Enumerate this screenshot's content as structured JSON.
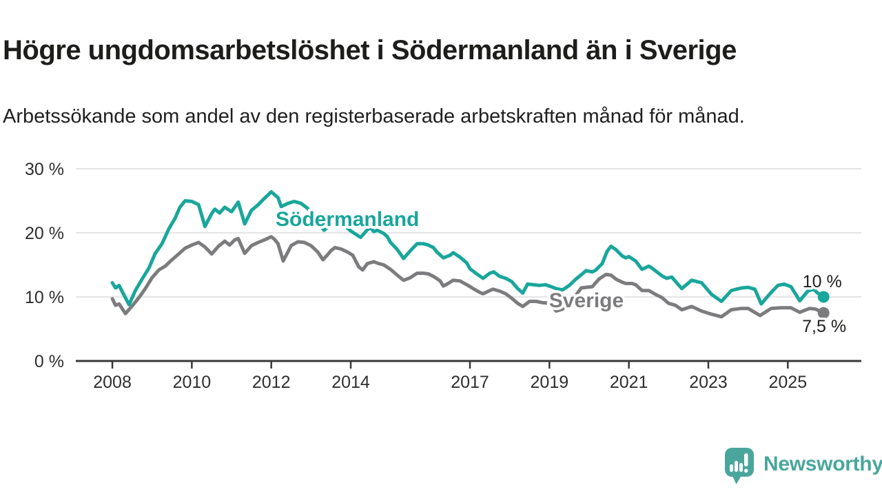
{
  "header": {
    "title": "Högre ungdomsarbetslöshet i Södermanland än i Sverige",
    "subtitle": "Arbetssökande som andel av den registerbaserade arbetskraften månad för månad."
  },
  "branding": {
    "logo_text": "Newsworthy",
    "logo_color": "#4aa69d",
    "logo_icon": "bar-chart-speech-bubble-icon"
  },
  "chart_data": {
    "type": "line",
    "title": "Högre ungdomsarbetslöshet i Södermanland än i Sverige",
    "subtitle": "Arbetssökande som andel av den registerbaserade arbetskraften månad för månad.",
    "x_unit": "year (monthly observations)",
    "y_unit": "percent",
    "grid": "horizontal-only",
    "grid_color": "#dcdcdc",
    "axis_color": "#383838",
    "xlim": [
      2007.08,
      2026.85
    ],
    "ylim": [
      0,
      30
    ],
    "y_ticks": [
      {
        "value": 0,
        "label": "0 %"
      },
      {
        "value": 10,
        "label": "10 %"
      },
      {
        "value": 20,
        "label": "20 %"
      },
      {
        "value": 30,
        "label": "30 %"
      }
    ],
    "x_ticks": [
      {
        "value": 2008,
        "label": "2008"
      },
      {
        "value": 2010,
        "label": "2010"
      },
      {
        "value": 2012,
        "label": "2012"
      },
      {
        "value": 2014,
        "label": "2014"
      },
      {
        "value": 2017,
        "label": "2017"
      },
      {
        "value": 2019,
        "label": "2019"
      },
      {
        "value": 2021,
        "label": "2021"
      },
      {
        "value": 2023,
        "label": "2023"
      },
      {
        "value": 2025,
        "label": "2025"
      }
    ],
    "annotations": [
      {
        "text": "10 %",
        "x": 2026.36,
        "y": 11.5,
        "anchor": "end"
      },
      {
        "text": "7,5 %",
        "x": 2026.47,
        "y": 4.5,
        "anchor": "end"
      }
    ],
    "series": [
      {
        "name": "Sverige",
        "color": "#7c7c7f",
        "end_value_label": "7,5 %",
        "label": {
          "text": "Sverige",
          "x": 2018.99,
          "y": 8.4,
          "anchor": "start"
        },
        "points": [
          [
            2008.0,
            9.7
          ],
          [
            2008.08,
            8.7
          ],
          [
            2008.17,
            8.9
          ],
          [
            2008.33,
            7.4
          ],
          [
            2008.5,
            8.6
          ],
          [
            2008.67,
            9.9
          ],
          [
            2008.83,
            11.3
          ],
          [
            2009.0,
            13.0
          ],
          [
            2009.17,
            14.2
          ],
          [
            2009.33,
            14.8
          ],
          [
            2009.5,
            15.8
          ],
          [
            2009.67,
            16.7
          ],
          [
            2009.83,
            17.6
          ],
          [
            2010.0,
            18.1
          ],
          [
            2010.17,
            18.5
          ],
          [
            2010.33,
            17.8
          ],
          [
            2010.5,
            16.7
          ],
          [
            2010.67,
            17.9
          ],
          [
            2010.83,
            18.7
          ],
          [
            2010.95,
            18.1
          ],
          [
            2011.08,
            18.9
          ],
          [
            2011.17,
            19.1
          ],
          [
            2011.33,
            16.8
          ],
          [
            2011.5,
            18.0
          ],
          [
            2011.67,
            18.5
          ],
          [
            2011.83,
            18.9
          ],
          [
            2012.0,
            19.4
          ],
          [
            2012.08,
            19.0
          ],
          [
            2012.17,
            18.3
          ],
          [
            2012.3,
            15.6
          ],
          [
            2012.5,
            18.0
          ],
          [
            2012.67,
            18.6
          ],
          [
            2012.83,
            18.5
          ],
          [
            2013.0,
            18.0
          ],
          [
            2013.17,
            17.0
          ],
          [
            2013.3,
            15.8
          ],
          [
            2013.42,
            16.6
          ],
          [
            2013.5,
            17.2
          ],
          [
            2013.6,
            17.7
          ],
          [
            2013.75,
            17.5
          ],
          [
            2013.92,
            17.0
          ],
          [
            2014.05,
            16.5
          ],
          [
            2014.2,
            14.7
          ],
          [
            2014.3,
            14.2
          ],
          [
            2014.42,
            15.2
          ],
          [
            2014.58,
            15.5
          ],
          [
            2014.7,
            15.2
          ],
          [
            2014.83,
            15.0
          ],
          [
            2015.0,
            14.3
          ],
          [
            2015.17,
            13.4
          ],
          [
            2015.33,
            12.6
          ],
          [
            2015.5,
            13.0
          ],
          [
            2015.67,
            13.7
          ],
          [
            2015.83,
            13.7
          ],
          [
            2015.95,
            13.6
          ],
          [
            2016.08,
            13.2
          ],
          [
            2016.25,
            12.5
          ],
          [
            2016.33,
            11.7
          ],
          [
            2016.45,
            12.1
          ],
          [
            2016.58,
            12.6
          ],
          [
            2016.75,
            12.5
          ],
          [
            2016.92,
            11.9
          ],
          [
            2017.08,
            11.3
          ],
          [
            2017.25,
            10.7
          ],
          [
            2017.33,
            10.5
          ],
          [
            2017.5,
            11.0
          ],
          [
            2017.58,
            11.2
          ],
          [
            2017.75,
            10.9
          ],
          [
            2017.9,
            10.5
          ],
          [
            2018.05,
            9.8
          ],
          [
            2018.2,
            9.0
          ],
          [
            2018.33,
            8.5
          ],
          [
            2018.5,
            9.3
          ],
          [
            2018.67,
            9.3
          ],
          [
            2018.83,
            9.1
          ],
          [
            2019.0,
            9.0
          ],
          [
            2019.17,
            7.8
          ],
          [
            2019.33,
            8.1
          ],
          [
            2019.5,
            9.2
          ],
          [
            2019.67,
            10.3
          ],
          [
            2019.8,
            11.4
          ],
          [
            2019.92,
            11.5
          ],
          [
            2020.08,
            11.6
          ],
          [
            2020.25,
            12.8
          ],
          [
            2020.42,
            13.5
          ],
          [
            2020.55,
            13.4
          ],
          [
            2020.67,
            12.8
          ],
          [
            2020.83,
            12.3
          ],
          [
            2020.92,
            12.1
          ],
          [
            2021.08,
            12.1
          ],
          [
            2021.17,
            11.9
          ],
          [
            2021.33,
            11.0
          ],
          [
            2021.5,
            11.0
          ],
          [
            2021.67,
            10.4
          ],
          [
            2021.83,
            9.9
          ],
          [
            2022.0,
            9.0
          ],
          [
            2022.17,
            8.7
          ],
          [
            2022.33,
            8.0
          ],
          [
            2022.58,
            8.5
          ],
          [
            2022.83,
            7.8
          ],
          [
            2023.08,
            7.3
          ],
          [
            2023.33,
            6.9
          ],
          [
            2023.58,
            8.0
          ],
          [
            2023.83,
            8.2
          ],
          [
            2024.0,
            8.2
          ],
          [
            2024.3,
            7.1
          ],
          [
            2024.58,
            8.2
          ],
          [
            2024.83,
            8.3
          ],
          [
            2025.08,
            8.3
          ],
          [
            2025.3,
            7.6
          ],
          [
            2025.55,
            8.2
          ],
          [
            2025.7,
            8.1
          ],
          [
            2025.9,
            7.5
          ]
        ]
      },
      {
        "name": "Södermanland",
        "color": "#19a69b",
        "end_value_label": "10 %",
        "label": {
          "text": "Södermanland",
          "x": 2012.11,
          "y": 21.1,
          "anchor": "start"
        },
        "points": [
          [
            2008.0,
            12.2
          ],
          [
            2008.08,
            11.4
          ],
          [
            2008.17,
            11.8
          ],
          [
            2008.25,
            10.8
          ],
          [
            2008.42,
            8.8
          ],
          [
            2008.58,
            11.0
          ],
          [
            2008.75,
            12.8
          ],
          [
            2008.92,
            14.5
          ],
          [
            2009.08,
            16.8
          ],
          [
            2009.25,
            18.3
          ],
          [
            2009.42,
            20.6
          ],
          [
            2009.58,
            22.3
          ],
          [
            2009.7,
            24.0
          ],
          [
            2009.83,
            25.0
          ],
          [
            2010.0,
            24.9
          ],
          [
            2010.17,
            24.4
          ],
          [
            2010.33,
            21.0
          ],
          [
            2010.5,
            23.0
          ],
          [
            2010.58,
            23.7
          ],
          [
            2010.7,
            23.1
          ],
          [
            2010.83,
            24.0
          ],
          [
            2011.0,
            23.3
          ],
          [
            2011.17,
            24.8
          ],
          [
            2011.33,
            21.4
          ],
          [
            2011.5,
            23.5
          ],
          [
            2011.67,
            24.4
          ],
          [
            2011.83,
            25.4
          ],
          [
            2012.0,
            26.4
          ],
          [
            2012.17,
            25.5
          ],
          [
            2012.25,
            24.1
          ],
          [
            2012.42,
            24.6
          ],
          [
            2012.58,
            24.9
          ],
          [
            2012.75,
            24.6
          ],
          [
            2012.92,
            23.8
          ],
          [
            2013.08,
            22.3
          ],
          [
            2013.33,
            20.4
          ],
          [
            2013.5,
            21.4
          ],
          [
            2013.67,
            21.8
          ],
          [
            2013.83,
            21.2
          ],
          [
            2014.0,
            20.3
          ],
          [
            2014.17,
            19.6
          ],
          [
            2014.25,
            19.3
          ],
          [
            2014.42,
            20.5
          ],
          [
            2014.5,
            20.8
          ],
          [
            2014.58,
            20.2
          ],
          [
            2014.67,
            20.4
          ],
          [
            2014.83,
            19.9
          ],
          [
            2014.92,
            19.4
          ],
          [
            2015.0,
            18.5
          ],
          [
            2015.17,
            17.4
          ],
          [
            2015.33,
            16.0
          ],
          [
            2015.5,
            17.2
          ],
          [
            2015.67,
            18.3
          ],
          [
            2015.83,
            18.3
          ],
          [
            2015.95,
            18.1
          ],
          [
            2016.08,
            17.7
          ],
          [
            2016.17,
            17.0
          ],
          [
            2016.33,
            16.1
          ],
          [
            2016.5,
            16.5
          ],
          [
            2016.58,
            16.9
          ],
          [
            2016.75,
            16.2
          ],
          [
            2016.92,
            15.3
          ],
          [
            2017.0,
            14.4
          ],
          [
            2017.17,
            13.6
          ],
          [
            2017.33,
            12.9
          ],
          [
            2017.5,
            13.7
          ],
          [
            2017.6,
            13.9
          ],
          [
            2017.75,
            13.2
          ],
          [
            2017.9,
            12.9
          ],
          [
            2018.05,
            12.4
          ],
          [
            2018.2,
            11.3
          ],
          [
            2018.33,
            10.6
          ],
          [
            2018.45,
            12.0
          ],
          [
            2018.6,
            11.9
          ],
          [
            2018.75,
            11.8
          ],
          [
            2018.9,
            11.9
          ],
          [
            2019.0,
            11.7
          ],
          [
            2019.17,
            11.3
          ],
          [
            2019.33,
            11.1
          ],
          [
            2019.5,
            11.8
          ],
          [
            2019.67,
            12.8
          ],
          [
            2019.83,
            13.6
          ],
          [
            2019.92,
            14.1
          ],
          [
            2020.08,
            13.9
          ],
          [
            2020.17,
            14.2
          ],
          [
            2020.33,
            15.2
          ],
          [
            2020.45,
            17.1
          ],
          [
            2020.55,
            17.9
          ],
          [
            2020.67,
            17.4
          ],
          [
            2020.83,
            16.4
          ],
          [
            2020.92,
            16.1
          ],
          [
            2021.0,
            16.3
          ],
          [
            2021.17,
            15.6
          ],
          [
            2021.33,
            14.3
          ],
          [
            2021.5,
            14.8
          ],
          [
            2021.58,
            14.5
          ],
          [
            2021.83,
            13.3
          ],
          [
            2021.95,
            12.9
          ],
          [
            2022.08,
            13.1
          ],
          [
            2022.33,
            11.3
          ],
          [
            2022.58,
            12.6
          ],
          [
            2022.83,
            12.2
          ],
          [
            2023.08,
            10.4
          ],
          [
            2023.33,
            9.3
          ],
          [
            2023.58,
            11.0
          ],
          [
            2023.83,
            11.4
          ],
          [
            2024.0,
            11.5
          ],
          [
            2024.17,
            11.2
          ],
          [
            2024.33,
            8.9
          ],
          [
            2024.55,
            10.5
          ],
          [
            2024.75,
            11.8
          ],
          [
            2024.9,
            12.0
          ],
          [
            2025.08,
            11.6
          ],
          [
            2025.3,
            9.4
          ],
          [
            2025.5,
            10.9
          ],
          [
            2025.65,
            11.2
          ],
          [
            2025.75,
            10.6
          ],
          [
            2025.9,
            10.0
          ]
        ]
      }
    ]
  }
}
